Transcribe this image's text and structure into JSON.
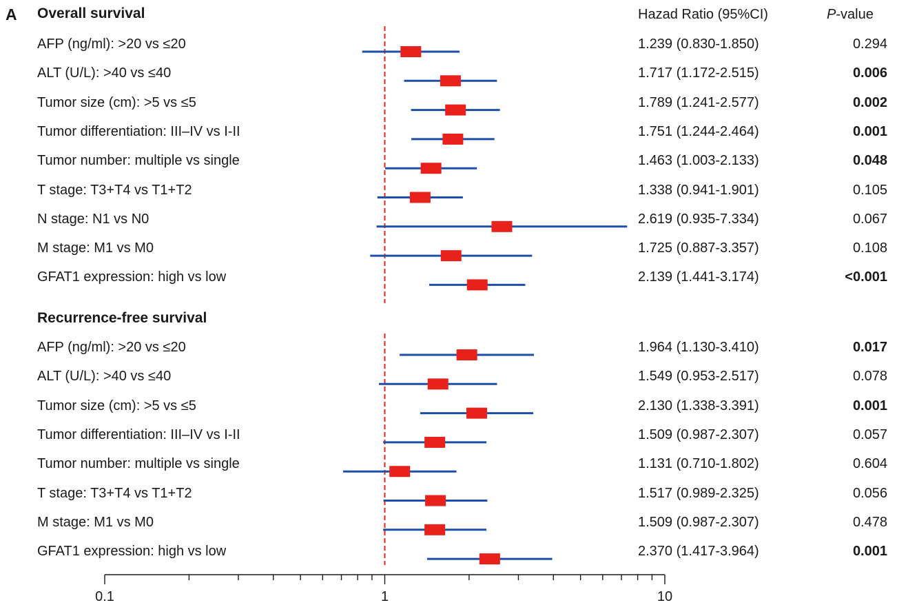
{
  "panel_label": "A",
  "columns": {
    "hr_header": "Hazad Ratio (95%CI)",
    "p_header_italic": "P",
    "p_header_rest": "-value"
  },
  "sections": [
    {
      "title": "Overall survival",
      "rows": [
        {
          "label": "AFP (ng/ml): >20 vs ≤20",
          "hr_text": "1.239 (0.830-1.850)",
          "p": "0.294",
          "sig": false
        },
        {
          "label": "ALT (U/L): >40 vs ≤40",
          "hr_text": "1.717 (1.172-2.515)",
          "p": "0.006",
          "sig": true
        },
        {
          "label": "Tumor size (cm): >5 vs ≤5",
          "hr_text": "1.789 (1.241-2.577)",
          "p": "0.002",
          "sig": true
        },
        {
          "label": "Tumor differentiation: III–IV vs I-II",
          "hr_text": "1.751 (1.244-2.464)",
          "p": "0.001",
          "sig": true
        },
        {
          "label": "Tumor number: multiple vs single",
          "hr_text": "1.463 (1.003-2.133)",
          "p": "0.048",
          "sig": true
        },
        {
          "label": "T stage: T3+T4 vs T1+T2",
          "hr_text": "1.338 (0.941-1.901)",
          "p": "0.105",
          "sig": false
        },
        {
          "label": "N stage: N1 vs N0",
          "hr_text": "2.619 (0.935-7.334)",
          "p": "0.067",
          "sig": false
        },
        {
          "label": "M stage: M1 vs M0",
          "hr_text": "1.725 (0.887-3.357)",
          "p": "0.108",
          "sig": false
        },
        {
          "label": "GFAT1 expression: high vs low",
          "hr_text": "2.139 (1.441-3.174)",
          "p": "<0.001",
          "sig": true
        }
      ]
    },
    {
      "title": "Recurrence-free survival",
      "rows": [
        {
          "label": "AFP (ng/ml): >20 vs ≤20",
          "hr_text": "1.964 (1.130-3.410)",
          "p": "0.017",
          "sig": true
        },
        {
          "label": "ALT (U/L): >40 vs ≤40",
          "hr_text": "1.549 (0.953-2.517)",
          "p": "0.078",
          "sig": false
        },
        {
          "label": "Tumor size (cm): >5 vs ≤5",
          "hr_text": "2.130 (1.338-3.391)",
          "p": "0.001",
          "sig": true
        },
        {
          "label": "Tumor differentiation: III–IV vs I-II",
          "hr_text": "1.509 (0.987-2.307)",
          "p": "0.057",
          "sig": false
        },
        {
          "label": "Tumor number: multiple vs single",
          "hr_text": "1.131 (0.710-1.802)",
          "p": "0.604",
          "sig": false
        },
        {
          "label": "T stage: T3+T4 vs T1+T2",
          "hr_text": "1.517 (0.989-2.325)",
          "p": "0.056",
          "sig": false
        },
        {
          "label": "M stage: M1 vs M0",
          "hr_text": "1.509 (0.987-2.307)",
          "p": "0.478",
          "sig": false
        },
        {
          "label": "GFAT1 expression: high vs low",
          "hr_text": "2.370 (1.417-3.964)",
          "p": "0.001",
          "sig": true
        }
      ]
    }
  ],
  "chart_data": {
    "type": "forest",
    "x_scale": "log",
    "xlim": [
      0.1,
      10
    ],
    "x_tick_labels": [
      "0.1",
      "1",
      "10"
    ],
    "reference_line": 1,
    "colors": {
      "box": "#e8211d",
      "ci_line": "#1f4ea8",
      "reference": "#e8211d",
      "axis": "#1a1a1a"
    },
    "series": [
      {
        "name": "Overall survival",
        "points": [
          {
            "hr": 1.239,
            "lo": 0.83,
            "hi": 1.85
          },
          {
            "hr": 1.717,
            "lo": 1.172,
            "hi": 2.515
          },
          {
            "hr": 1.789,
            "lo": 1.241,
            "hi": 2.577
          },
          {
            "hr": 1.751,
            "lo": 1.244,
            "hi": 2.464
          },
          {
            "hr": 1.463,
            "lo": 1.003,
            "hi": 2.133
          },
          {
            "hr": 1.338,
            "lo": 0.941,
            "hi": 1.901
          },
          {
            "hr": 2.619,
            "lo": 0.935,
            "hi": 7.334
          },
          {
            "hr": 1.725,
            "lo": 0.887,
            "hi": 3.357
          },
          {
            "hr": 2.139,
            "lo": 1.441,
            "hi": 3.174
          }
        ]
      },
      {
        "name": "Recurrence-free survival",
        "points": [
          {
            "hr": 1.964,
            "lo": 1.13,
            "hi": 3.41
          },
          {
            "hr": 1.549,
            "lo": 0.953,
            "hi": 2.517
          },
          {
            "hr": 2.13,
            "lo": 1.338,
            "hi": 3.391
          },
          {
            "hr": 1.509,
            "lo": 0.987,
            "hi": 2.307
          },
          {
            "hr": 1.131,
            "lo": 0.71,
            "hi": 1.802
          },
          {
            "hr": 1.517,
            "lo": 0.989,
            "hi": 2.325
          },
          {
            "hr": 1.509,
            "lo": 0.987,
            "hi": 2.307
          },
          {
            "hr": 2.37,
            "lo": 1.417,
            "hi": 3.964
          }
        ]
      }
    ]
  }
}
